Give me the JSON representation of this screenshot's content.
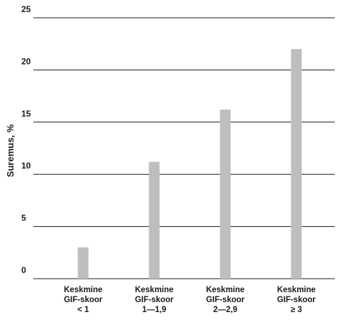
{
  "chart_data": {
    "type": "bar",
    "title": "",
    "xlabel": "",
    "ylabel": "Suremus, %",
    "ylim": [
      0,
      25
    ],
    "yticks": [
      0,
      5,
      10,
      15,
      20,
      25
    ],
    "grid": "horizontal",
    "categories": [
      [
        "Keskmine",
        "GIF-skoor",
        "< 1"
      ],
      [
        "Keskmine",
        "GIF-skoor",
        "1—1,9"
      ],
      [
        "Keskmine",
        "GIF-skoor",
        "2—2,9"
      ],
      [
        "Keskmine",
        "GIF-skoor",
        "≥ 3"
      ]
    ],
    "values": [
      3.0,
      11.2,
      16.2,
      22.0
    ],
    "bar_color": "#bdbec0",
    "grid_color": "#1a1a1a"
  }
}
